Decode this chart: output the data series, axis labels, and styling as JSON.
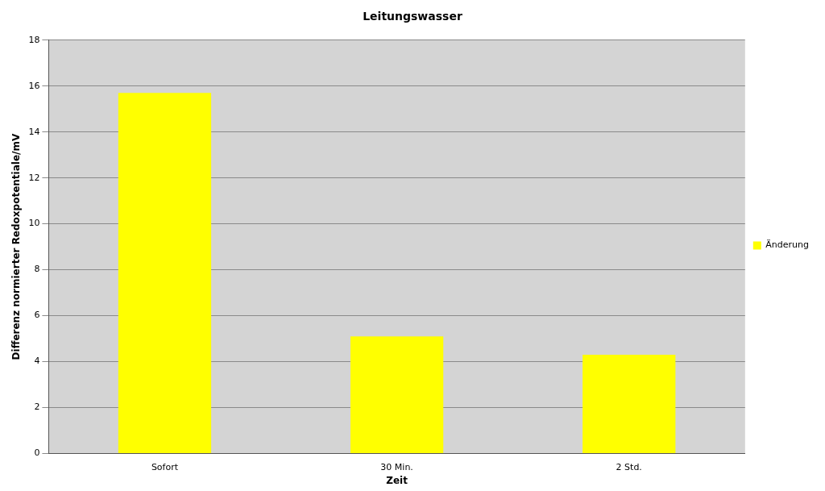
{
  "chart_data": {
    "type": "bar",
    "title": "Leitungswasser",
    "xlabel": "Zeit",
    "ylabel": "Differenz normierter Redoxpotentiale/mV",
    "categories": [
      "Sofort",
      "30 Min.",
      "2 Std."
    ],
    "series": [
      {
        "name": "Änderung",
        "color": "#ffff00",
        "values": [
          15.7,
          5.1,
          4.3
        ]
      }
    ],
    "ylim": [
      0,
      18
    ],
    "yticks": [
      0,
      2,
      4,
      6,
      8,
      10,
      12,
      14,
      16,
      18
    ],
    "grid": "y",
    "legend": "right"
  }
}
